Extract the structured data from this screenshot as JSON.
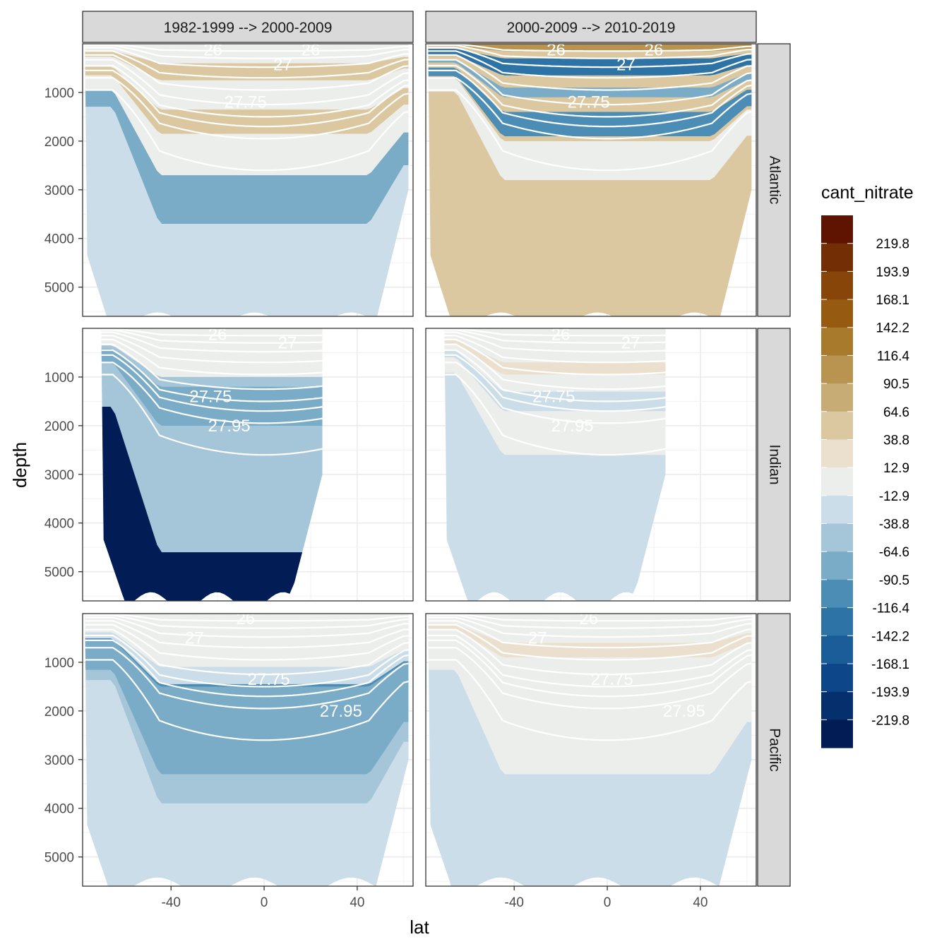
{
  "chart_data": {
    "type": "heatmap",
    "subtype": "faceted filled-contour ocean sections with isopycnal overlays",
    "xlabel": "lat",
    "ylabel": "depth",
    "x_ticks": [
      -40,
      0,
      40
    ],
    "y_ticks": [
      1000,
      2000,
      3000,
      4000,
      5000
    ],
    "xlim": [
      -78,
      64
    ],
    "ylim": [
      0,
      5600
    ],
    "y_reversed": true,
    "columns": [
      "1982-1999 --> 2000-2009",
      "2000-2009 --> 2010-2019"
    ],
    "rows": [
      "Atlantic",
      "Indian",
      "Pacific"
    ],
    "legend": {
      "title": "cant_nitrate",
      "position": "right",
      "labels": [
        "219.8",
        "193.9",
        "168.1",
        "142.2",
        "116.4",
        "90.5",
        "64.6",
        "38.8",
        "12.9",
        "-12.9",
        "-38.8",
        "-64.6",
        "-90.5",
        "-116.4",
        "-142.2",
        "-168.1",
        "-193.9",
        "-219.8"
      ],
      "colors": [
        "#5e1400",
        "#732e05",
        "#88450a",
        "#965a10",
        "#a87a2c",
        "#b99450",
        "#c8ac75",
        "#dbc7a0",
        "#ebe0cd",
        "#eceeec",
        "#cbdde8",
        "#a5c6d8",
        "#7aabc7",
        "#4b8db5",
        "#2e73a6",
        "#1a5d99",
        "#0d478a",
        "#06306d",
        "#021c55"
      ]
    },
    "isopycnal_labels": [
      "26",
      "27",
      "27.75",
      "27.95"
    ],
    "isopycnals": [
      {
        "level": "26",
        "base": 150,
        "ridge": 80,
        "deep": 3
      },
      {
        "level": "26.5",
        "base": 300,
        "ridge": 150,
        "deep": 30
      },
      {
        "level": "27",
        "base": 480,
        "ridge": 250,
        "deep": 80
      },
      {
        "level": "27.25",
        "base": 700,
        "ridge": 380,
        "deep": 150
      },
      {
        "level": "27.5",
        "base": 950,
        "ridge": 520,
        "deep": 230
      },
      {
        "level": "27.75",
        "base": 1250,
        "ridge": 650,
        "deep": 330
      },
      {
        "level": "27.85",
        "base": 1500,
        "ridge": 780,
        "deep": 450
      },
      {
        "level": "27.9",
        "base": 1700,
        "ridge": 850,
        "deep": 550
      },
      {
        "level": "27.95",
        "base": 1950,
        "ridge": 1000,
        "deep": 700
      },
      {
        "level": "28",
        "base": 2600,
        "ridge": 1400,
        "deep": 950
      }
    ],
    "panels": [
      {
        "row": "Atlantic",
        "col": 0,
        "lat_range": [
          -77,
          62
        ],
        "bottom_depth": 5700,
        "labels": [
          {
            "text": "26",
            "lat": -22,
            "depth": 120
          },
          {
            "text": "26",
            "lat": 20,
            "depth": 120
          },
          {
            "text": "27",
            "lat": 8,
            "depth": 430
          },
          {
            "text": "27.75",
            "lat": -8,
            "depth": 1200
          }
        ],
        "bands": [
          {
            "top": 0,
            "bottom": 5700,
            "v": -12.9
          },
          {
            "top": 400,
            "bottom": 750,
            "v": 50
          },
          {
            "top": 1350,
            "bottom": 1850,
            "v": 60
          },
          {
            "top": 2700,
            "bottom": 3700,
            "v": -75
          },
          {
            "top": 3700,
            "bottom": 5700,
            "v": -20
          }
        ]
      },
      {
        "row": "Atlantic",
        "col": 1,
        "lat_range": [
          -77,
          62
        ],
        "bottom_depth": 5700,
        "labels": [
          {
            "text": "26",
            "lat": -22,
            "depth": 120
          },
          {
            "text": "26",
            "lat": 20,
            "depth": 120
          },
          {
            "text": "27",
            "lat": 8,
            "depth": 430
          },
          {
            "text": "27.75",
            "lat": -8,
            "depth": 1200
          }
        ],
        "bands": [
          {
            "top": 0,
            "bottom": 5700,
            "v": 60
          },
          {
            "top": 0,
            "bottom": 150,
            "v": 110
          },
          {
            "top": 300,
            "bottom": 650,
            "v": -120
          },
          {
            "top": 900,
            "bottom": 1100,
            "v": -75
          },
          {
            "top": 1400,
            "bottom": 1900,
            "v": -95
          },
          {
            "top": 2000,
            "bottom": 2800,
            "v": -10
          }
        ]
      },
      {
        "row": "Indian",
        "col": 0,
        "lat_range": [
          -70,
          25
        ],
        "bottom_depth": 5600,
        "labels": [
          {
            "text": "26",
            "lat": -20,
            "depth": 120
          },
          {
            "text": "27",
            "lat": 10,
            "depth": 300
          },
          {
            "text": "27.75",
            "lat": -23,
            "depth": 1400
          },
          {
            "text": "27.95",
            "lat": -15,
            "depth": 2000
          }
        ],
        "bands": [
          {
            "top": 0,
            "bottom": 5600,
            "v": -40
          },
          {
            "top": 0,
            "bottom": 1000,
            "v": -8
          },
          {
            "top": 1200,
            "bottom": 2000,
            "v": -70
          },
          {
            "top": 2600,
            "bottom": 4500,
            "v": -55
          },
          {
            "top": 4600,
            "bottom": 5600,
            "v": -230
          }
        ]
      },
      {
        "row": "Indian",
        "col": 1,
        "lat_range": [
          -70,
          25
        ],
        "bottom_depth": 5600,
        "labels": [
          {
            "text": "26",
            "lat": -20,
            "depth": 120
          },
          {
            "text": "27",
            "lat": 10,
            "depth": 300
          },
          {
            "text": "27.75",
            "lat": -23,
            "depth": 1400
          },
          {
            "text": "27.95",
            "lat": -15,
            "depth": 2000
          }
        ],
        "bands": [
          {
            "top": 0,
            "bottom": 5600,
            "v": -30
          },
          {
            "top": 0,
            "bottom": 2600,
            "v": -8
          },
          {
            "top": 700,
            "bottom": 950,
            "v": 25
          },
          {
            "top": 1300,
            "bottom": 1700,
            "v": -28
          }
        ]
      },
      {
        "row": "Pacific",
        "col": 0,
        "lat_range": [
          -77,
          62
        ],
        "bottom_depth": 5600,
        "labels": [
          {
            "text": "26",
            "lat": -8,
            "depth": 100
          },
          {
            "text": "27",
            "lat": -30,
            "depth": 500
          },
          {
            "text": "27.75",
            "lat": 2,
            "depth": 1350
          },
          {
            "text": "27.95",
            "lat": 33,
            "depth": 2000
          }
        ],
        "bands": [
          {
            "top": 0,
            "bottom": 5600,
            "v": -50
          },
          {
            "top": 0,
            "bottom": 1100,
            "v": -8
          },
          {
            "top": 1100,
            "bottom": 1500,
            "v": -30
          },
          {
            "top": 1450,
            "bottom": 1550,
            "v": -110
          },
          {
            "top": 1500,
            "bottom": 3300,
            "v": -65
          },
          {
            "top": 3900,
            "bottom": 5600,
            "v": -30
          }
        ]
      },
      {
        "row": "Pacific",
        "col": 1,
        "lat_range": [
          -77,
          62
        ],
        "bottom_depth": 5600,
        "labels": [
          {
            "text": "26",
            "lat": -8,
            "depth": 100
          },
          {
            "text": "27",
            "lat": -30,
            "depth": 500
          },
          {
            "text": "27.75",
            "lat": 2,
            "depth": 1350
          },
          {
            "text": "27.95",
            "lat": 33,
            "depth": 2000
          }
        ],
        "bands": [
          {
            "top": 0,
            "bottom": 5600,
            "v": -25
          },
          {
            "top": 0,
            "bottom": 3300,
            "v": -8
          },
          {
            "top": 600,
            "bottom": 900,
            "v": 22
          }
        ]
      }
    ]
  }
}
